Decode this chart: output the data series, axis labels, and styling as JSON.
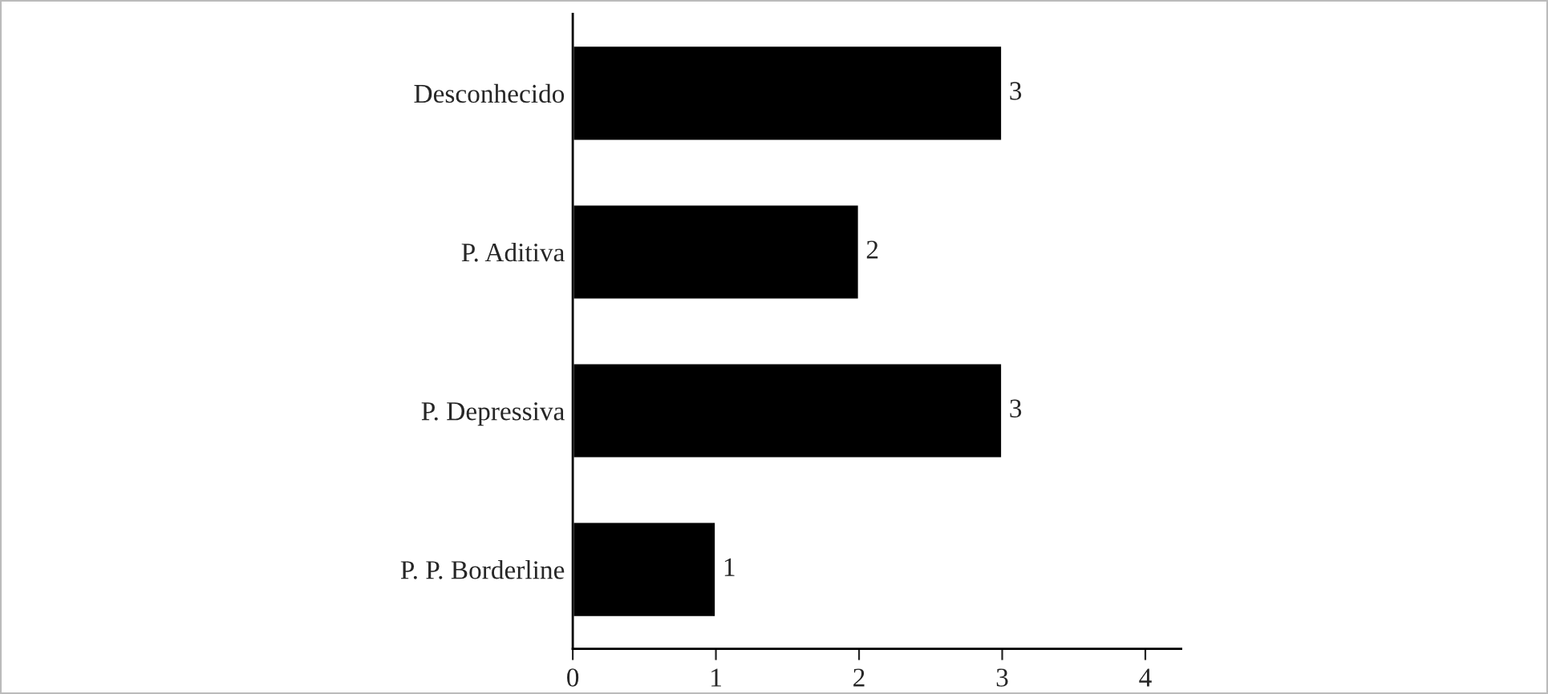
{
  "chart_data": {
    "type": "bar",
    "orientation": "horizontal",
    "categories": [
      "Desconhecido",
      "P. Aditiva",
      "P. Depressiva",
      "P. P. Borderline"
    ],
    "values": [
      3,
      2,
      3,
      1
    ],
    "color": "#000000",
    "data_labels": true,
    "xlim": [
      0,
      4.25
    ],
    "xticks": [
      0,
      1,
      2,
      3,
      4
    ],
    "grid": false,
    "legend": false
  }
}
